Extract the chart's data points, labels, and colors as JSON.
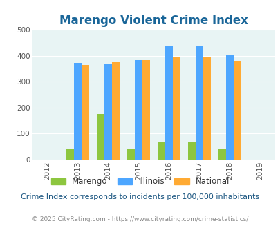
{
  "title": "Marengo Violent Crime Index",
  "years": [
    2012,
    2013,
    2014,
    2015,
    2016,
    2017,
    2018,
    2019
  ],
  "data_years": [
    2013,
    2014,
    2015,
    2016,
    2017,
    2018
  ],
  "marengo": [
    43,
    175,
    43,
    70,
    70,
    43
  ],
  "illinois": [
    372,
    368,
    383,
    437,
    437,
    405
  ],
  "national": [
    365,
    375,
    383,
    397,
    393,
    380
  ],
  "marengo_color": "#8dc63f",
  "illinois_color": "#4da6ff",
  "national_color": "#ffaa33",
  "bg_color": "#e8f4f4",
  "title_color": "#1a6699",
  "ylim": [
    0,
    500
  ],
  "yticks": [
    0,
    100,
    200,
    300,
    400,
    500
  ],
  "bar_width": 0.25,
  "subtitle": "Crime Index corresponds to incidents per 100,000 inhabitants",
  "footer": "© 2025 CityRating.com - https://www.cityrating.com/crime-statistics/",
  "legend_labels": [
    "Marengo",
    "Illinois",
    "National"
  ]
}
